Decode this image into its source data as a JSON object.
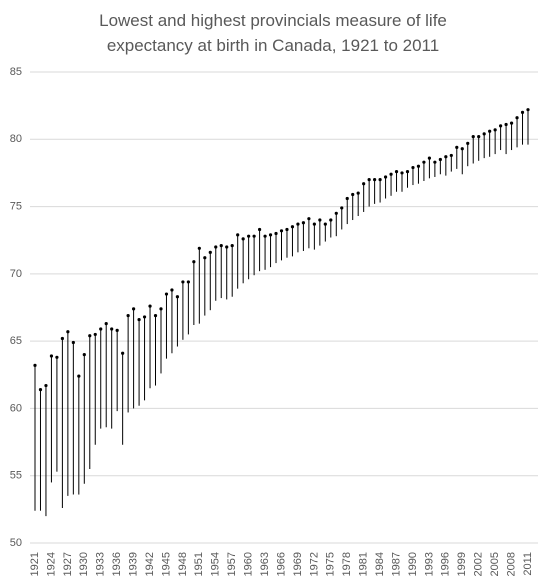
{
  "chart_data": {
    "type": "hilo",
    "title": "Lowest and highest provincials measure of life expectancy at birth in Canada, 1921 to 2011",
    "categories": [
      "1921",
      null,
      null,
      "1924",
      null,
      null,
      "1927",
      null,
      null,
      "1930",
      null,
      null,
      "1933",
      null,
      null,
      "1936",
      null,
      null,
      "1939",
      null,
      null,
      "1942",
      null,
      null,
      "1945",
      null,
      null,
      "1948",
      null,
      null,
      "1951",
      null,
      null,
      "1954",
      null,
      null,
      "1957",
      null,
      null,
      "1960",
      null,
      null,
      "1963",
      null,
      null,
      "1966",
      null,
      null,
      "1969",
      null,
      null,
      "1972",
      null,
      null,
      "1975",
      null,
      null,
      "1978",
      null,
      null,
      "1981",
      null,
      null,
      "1984",
      null,
      null,
      "1987",
      null,
      null,
      "1990",
      null,
      null,
      "1993",
      null,
      null,
      "1996",
      null,
      null,
      "1999",
      null,
      null,
      "2002",
      null,
      null,
      "2005",
      null,
      null,
      "2008",
      null,
      null,
      "2011"
    ],
    "series": [
      {
        "color": "#000000",
        "values": [
          63.2,
          61.4,
          61.7,
          63.9,
          63.8,
          65.2,
          65.7,
          64.9,
          62.4,
          64.0,
          65.4,
          65.5,
          65.9,
          66.3,
          65.9,
          65.8,
          64.1,
          66.9,
          67.4,
          66.6,
          66.8,
          67.6,
          66.9,
          67.4,
          68.5,
          68.8,
          68.3,
          69.4,
          69.4,
          70.9,
          71.9,
          71.2,
          71.6,
          72.0,
          72.1,
          72.0,
          72.1,
          72.9,
          72.6,
          72.8,
          72.8,
          73.3,
          72.8,
          72.9,
          73.0,
          73.2,
          73.3,
          73.5,
          73.7,
          73.8,
          74.1,
          73.7,
          74.0,
          73.7,
          74.0,
          74.5,
          74.9,
          75.6,
          75.9,
          76.0,
          76.7,
          77.0,
          77.0,
          77.0,
          77.2,
          77.4,
          77.6,
          77.5,
          77.6,
          77.9,
          78.0,
          78.3,
          78.6,
          78.3,
          78.5,
          78.7,
          78.8,
          79.4,
          79.3,
          79.7,
          80.2,
          80.2,
          80.4,
          80.6,
          80.7,
          81.0,
          81.1,
          81.2,
          81.6,
          82.0,
          82.2
        ]
      },
      {
        "color": "#000000",
        "values": [
          52.4,
          52.4,
          52.0,
          54.5,
          55.3,
          52.6,
          53.5,
          53.6,
          53.6,
          54.4,
          55.5,
          57.3,
          58.5,
          58.6,
          58.5,
          59.8,
          57.3,
          59.7,
          60.0,
          60.2,
          60.6,
          61.5,
          61.7,
          62.6,
          63.7,
          64.1,
          64.6,
          65.1,
          65.5,
          66.2,
          66.3,
          66.9,
          67.3,
          68.0,
          68.2,
          68.1,
          68.3,
          68.9,
          69.3,
          69.6,
          69.9,
          70.2,
          70.3,
          70.5,
          70.8,
          71.0,
          71.2,
          71.3,
          71.6,
          71.7,
          71.9,
          71.8,
          72.1,
          72.4,
          72.7,
          72.8,
          73.3,
          73.7,
          74.0,
          74.3,
          74.6,
          75.0,
          75.2,
          75.3,
          75.6,
          75.8,
          76.1,
          76.1,
          76.4,
          76.6,
          76.7,
          76.9,
          77.1,
          77.2,
          77.4,
          77.3,
          77.6,
          77.8,
          77.4,
          78.0,
          78.2,
          78.4,
          78.6,
          78.7,
          78.9,
          79.2,
          78.9,
          79.2,
          79.4,
          79.6,
          79.6
        ]
      }
    ],
    "ylim": [
      50,
      85
    ],
    "yticks": [
      50,
      55,
      60,
      65,
      70,
      75,
      80,
      85
    ],
    "grid": true
  }
}
